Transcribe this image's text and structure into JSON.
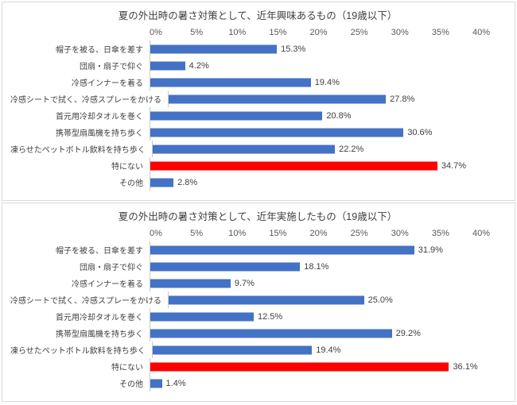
{
  "colors": {
    "bar": "#4472C4",
    "highlight": "#FF0000",
    "panel_border": "#D9D9D9",
    "text": "#404040"
  },
  "chart_data": [
    {
      "type": "bar",
      "orientation": "horizontal",
      "title": "夏の外出時の暑さ対策として、近年興味あるもの（19歳以下）",
      "categories": [
        "帽子を被る、日傘を差す",
        "団扇・扇子で仰ぐ",
        "冷感インナーを着る",
        "冷感シートで拭く、冷感スプレーをかける",
        "首元用冷却タオルを巻く",
        "携帯型扇風機を持ち歩く",
        "凍らせたペットボトル飲料を持ち歩く",
        "特にない",
        "その他"
      ],
      "values": [
        15.3,
        4.2,
        19.4,
        27.8,
        20.8,
        30.6,
        22.2,
        34.7,
        2.8
      ],
      "value_labels": [
        "15.3%",
        "4.2%",
        "19.4%",
        "27.8%",
        "20.8%",
        "30.6%",
        "22.2%",
        "34.7%",
        "2.8%"
      ],
      "highlight_index": 7,
      "x_ticks": [
        "0%",
        "5%",
        "10%",
        "15%",
        "20%",
        "25%",
        "30%",
        "35%",
        "40%"
      ],
      "xlim": [
        0,
        40
      ],
      "axis_position": "top",
      "grid": false,
      "legend": "none"
    },
    {
      "type": "bar",
      "orientation": "horizontal",
      "title": "夏の外出時の暑さ対策として、近年実施したもの（19歳以下）",
      "categories": [
        "帽子を被る、日傘を差す",
        "団扇・扇子で仰ぐ",
        "冷感インナーを着る",
        "冷感シートで拭く、冷感スプレーをかける",
        "首元用冷却タオルを巻く",
        "携帯型扇風機を持ち歩く",
        "凍らせたペットボトル飲料を持ち歩く",
        "特にない",
        "その他"
      ],
      "values": [
        31.9,
        18.1,
        9.7,
        25.0,
        12.5,
        29.2,
        19.4,
        36.1,
        1.4
      ],
      "value_labels": [
        "31.9%",
        "18.1%",
        "9.7%",
        "25.0%",
        "12.5%",
        "29.2%",
        "19.4%",
        "36.1%",
        "1.4%"
      ],
      "highlight_index": 7,
      "x_ticks": [
        "0%",
        "5%",
        "10%",
        "15%",
        "20%",
        "25%",
        "30%",
        "35%",
        "40%"
      ],
      "xlim": [
        0,
        40
      ],
      "axis_position": "top",
      "grid": false,
      "legend": "none"
    }
  ]
}
